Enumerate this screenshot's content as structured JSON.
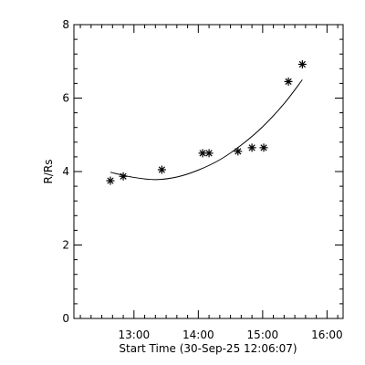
{
  "chart_data": {
    "type": "scatter",
    "xlabel": "Start Time (30-Sep-25 12:06:07)",
    "ylabel": "R/Rs",
    "xlim": [
      "12:04",
      "16:15"
    ],
    "ylim": [
      0,
      8
    ],
    "x_ticks": [
      "13:00",
      "14:00",
      "15:00",
      "16:00"
    ],
    "y_ticks": [
      0,
      2,
      4,
      6,
      8
    ],
    "grid": false,
    "legend": "none",
    "series": [
      {
        "marker": "asterisk",
        "points": [
          {
            "x": "12:38",
            "y": 3.75
          },
          {
            "x": "12:50",
            "y": 3.87
          },
          {
            "x": "13:26",
            "y": 4.05
          },
          {
            "x": "14:04",
            "y": 4.5
          },
          {
            "x": "14:10",
            "y": 4.5
          },
          {
            "x": "14:37",
            "y": 4.55
          },
          {
            "x": "14:50",
            "y": 4.65
          },
          {
            "x": "15:01",
            "y": 4.65
          },
          {
            "x": "15:24",
            "y": 6.45
          },
          {
            "x": "15:37",
            "y": 6.92
          }
        ]
      }
    ],
    "fit_curve": {
      "style": "line",
      "points": [
        {
          "x": "12:38",
          "y": 3.98
        },
        {
          "x": "13:00",
          "y": 3.84
        },
        {
          "x": "13:20",
          "y": 3.78
        },
        {
          "x": "13:40",
          "y": 3.85
        },
        {
          "x": "14:00",
          "y": 4.04
        },
        {
          "x": "14:20",
          "y": 4.32
        },
        {
          "x": "14:40",
          "y": 4.72
        },
        {
          "x": "15:00",
          "y": 5.22
        },
        {
          "x": "15:20",
          "y": 5.85
        },
        {
          "x": "15:37",
          "y": 6.5
        }
      ]
    }
  }
}
